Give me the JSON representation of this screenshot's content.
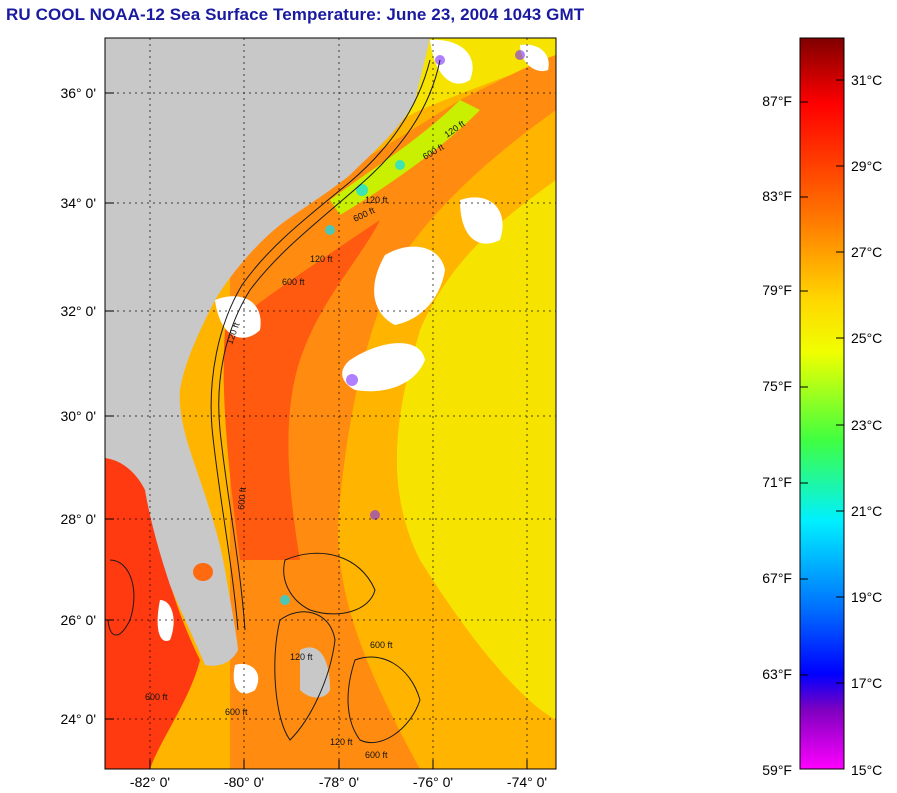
{
  "title": "RU COOL  NOAA-12  Sea Surface Temperature:  June 23, 2004 1043 GMT",
  "latitude_labels": [
    "36° 0'",
    "34° 0'",
    "32° 0'",
    "30° 0'",
    "28° 0'",
    "26° 0'",
    "24° 0'"
  ],
  "longitude_labels": [
    "-82° 0'",
    "-80° 0'",
    "-78° 0'",
    "-76° 0'",
    "-74° 0'"
  ],
  "colorbar": {
    "fahrenheit_labels": [
      "87°F",
      "83°F",
      "79°F",
      "75°F",
      "71°F",
      "67°F",
      "63°F",
      "59°F"
    ],
    "celsius_labels": [
      "31°C",
      "29°C",
      "27°C",
      "25°C",
      "23°C",
      "21°C",
      "19°C",
      "17°C",
      "15°C"
    ],
    "colors": [
      "#8b0000",
      "#ff0000",
      "#ff7a00",
      "#ffd800",
      "#f0ff00",
      "#50ff40",
      "#00f0ff",
      "#0060ff",
      "#0000ff",
      "#8000c0",
      "#ff00ff"
    ]
  },
  "bathymetry_labels": [
    "120 ft",
    "600 ft",
    "120 ft",
    "600 ft",
    "120 ft",
    "600 ft",
    "120 ft",
    "600 ft",
    "600 ft",
    "120 ft",
    "600 ft",
    "600 ft",
    "120 ft",
    "600 ft"
  ],
  "colors": {
    "title": "#1a1aa0",
    "land": "#c8c8c8",
    "cloud": "#ffffff",
    "warm_core": "#ff5a10",
    "mid": "#ffb000",
    "offshore": "#f8e800"
  }
}
